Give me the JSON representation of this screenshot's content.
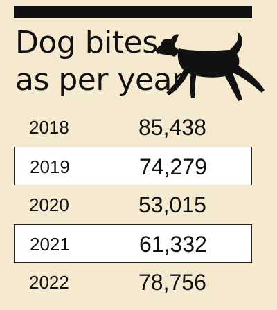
{
  "chart_data": {
    "type": "table",
    "title_line_1": "Dog bites",
    "title_line_2": "as per year",
    "rows": [
      {
        "year": "2018",
        "value": "85,438",
        "shaded": true
      },
      {
        "year": "2019",
        "value": "74,279",
        "shaded": false
      },
      {
        "year": "2020",
        "value": "53,015",
        "shaded": true
      },
      {
        "year": "2021",
        "value": "61,332",
        "shaded": false
      },
      {
        "year": "2022",
        "value": "78,756",
        "shaded": true
      }
    ]
  },
  "colors": {
    "background": "#f5e9cf",
    "accent_bar": "#111111",
    "row_white": "#ffffff",
    "text": "#111111"
  },
  "icons": {
    "illustration": "running-dog-icon"
  }
}
